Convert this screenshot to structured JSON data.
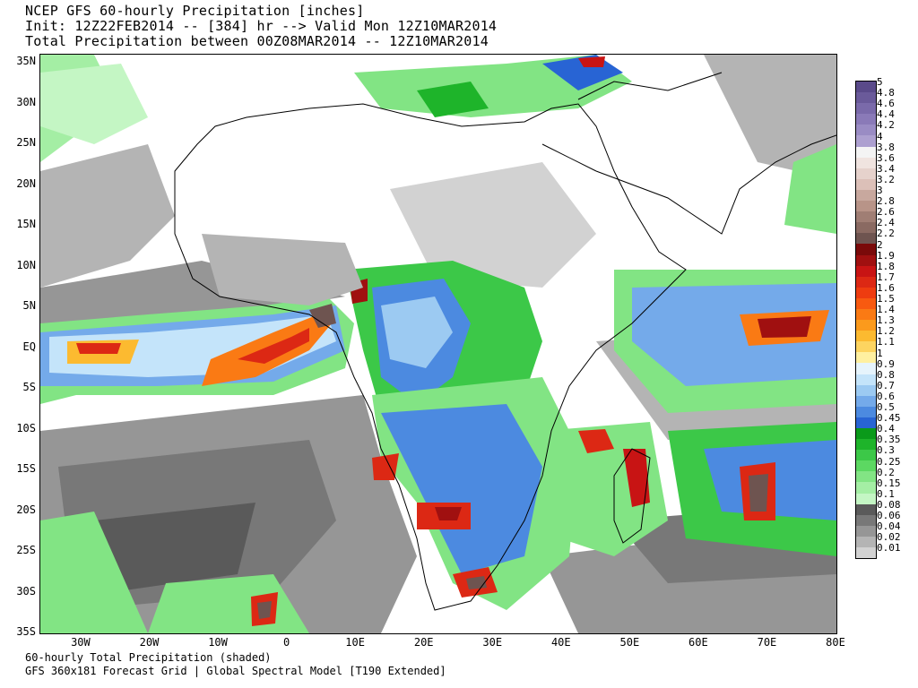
{
  "header": {
    "line1": "NCEP GFS 60-hourly Precipitation [inches]",
    "line2": "Init: 12Z22FEB2014 -- [384] hr --> Valid Mon 12Z10MAR2014",
    "line3": "Total Precipitation between 00Z08MAR2014 -- 12Z10MAR2014"
  },
  "footer": {
    "line1": "60-hourly Total Precipitation (shaded)",
    "line2": "GFS 360x181 Forecast Grid | Global Spectral Model [T190 Extended]"
  },
  "map": {
    "lon_range": [
      -36,
      80
    ],
    "lat_range": [
      -35,
      36
    ],
    "lat_ticks": [
      {
        "value": 35,
        "label": "35N"
      },
      {
        "value": 30,
        "label": "30N"
      },
      {
        "value": 25,
        "label": "25N"
      },
      {
        "value": 20,
        "label": "20N"
      },
      {
        "value": 15,
        "label": "15N"
      },
      {
        "value": 10,
        "label": "10N"
      },
      {
        "value": 5,
        "label": "5N"
      },
      {
        "value": 0,
        "label": "EQ"
      },
      {
        "value": -5,
        "label": "5S"
      },
      {
        "value": -10,
        "label": "10S"
      },
      {
        "value": -15,
        "label": "15S"
      },
      {
        "value": -20,
        "label": "20S"
      },
      {
        "value": -25,
        "label": "25S"
      },
      {
        "value": -30,
        "label": "30S"
      },
      {
        "value": -35,
        "label": "35S"
      }
    ],
    "lon_ticks": [
      {
        "value": -30,
        "label": "30W"
      },
      {
        "value": -20,
        "label": "20W"
      },
      {
        "value": -10,
        "label": "10W"
      },
      {
        "value": 0,
        "label": "0"
      },
      {
        "value": 10,
        "label": "10E"
      },
      {
        "value": 20,
        "label": "20E"
      },
      {
        "value": 30,
        "label": "30E"
      },
      {
        "value": 40,
        "label": "40E"
      },
      {
        "value": 50,
        "label": "50E"
      },
      {
        "value": 60,
        "label": "60E"
      },
      {
        "value": 70,
        "label": "70E"
      },
      {
        "value": 80,
        "label": "80E"
      }
    ]
  },
  "legend": {
    "title": "",
    "levels": [
      {
        "label": "5",
        "color": "#5a4a8a"
      },
      {
        "label": "4.8",
        "color": "#6a5a9a"
      },
      {
        "label": "4.6",
        "color": "#7a6aaa"
      },
      {
        "label": "4.4",
        "color": "#8a7ab8"
      },
      {
        "label": "4.2",
        "color": "#9a8cc4"
      },
      {
        "label": "4",
        "color": "#ada0d0"
      },
      {
        "label": "3.8",
        "color": "#f4f4f4"
      },
      {
        "label": "3.6",
        "color": "#f0e4e0"
      },
      {
        "label": "3.4",
        "color": "#e6d2cc"
      },
      {
        "label": "3.2",
        "color": "#dcc0b8"
      },
      {
        "label": "3",
        "color": "#c8a89e"
      },
      {
        "label": "2.8",
        "color": "#b89488"
      },
      {
        "label": "2.6",
        "color": "#a07e74"
      },
      {
        "label": "2.4",
        "color": "#8a6a62"
      },
      {
        "label": "2.2",
        "color": "#6e5450"
      },
      {
        "label": "2",
        "color": "#7a0a0a"
      },
      {
        "label": "1.9",
        "color": "#a01010"
      },
      {
        "label": "1.8",
        "color": "#c81414"
      },
      {
        "label": "1.7",
        "color": "#dc2814"
      },
      {
        "label": "1.6",
        "color": "#ee3c10"
      },
      {
        "label": "1.5",
        "color": "#f85a10"
      },
      {
        "label": "1.4",
        "color": "#fa7a14"
      },
      {
        "label": "1.3",
        "color": "#fb9a1c"
      },
      {
        "label": "1.2",
        "color": "#fcba30"
      },
      {
        "label": "1.1",
        "color": "#fdd460"
      },
      {
        "label": "1",
        "color": "#fff0a0"
      },
      {
        "label": "0.9",
        "color": "#e6f4fc"
      },
      {
        "label": "0.8",
        "color": "#c4e4fa"
      },
      {
        "label": "0.7",
        "color": "#9ccaf2"
      },
      {
        "label": "0.6",
        "color": "#74aaea"
      },
      {
        "label": "0.5",
        "color": "#4c8ae0"
      },
      {
        "label": "0.45",
        "color": "#2864d4"
      },
      {
        "label": "0.4",
        "color": "#0a9a1a"
      },
      {
        "label": "0.35",
        "color": "#1eb42a"
      },
      {
        "label": "0.3",
        "color": "#3cc848"
      },
      {
        "label": "0.25",
        "color": "#5cd862"
      },
      {
        "label": "0.2",
        "color": "#82e484"
      },
      {
        "label": "0.15",
        "color": "#a4eea4"
      },
      {
        "label": "0.1",
        "color": "#c4f6c4"
      },
      {
        "label": "0.08",
        "color": "#5a5a5a"
      },
      {
        "label": "0.06",
        "color": "#787878"
      },
      {
        "label": "0.04",
        "color": "#969696"
      },
      {
        "label": "0.02",
        "color": "#b4b4b4"
      },
      {
        "label": "0.01",
        "color": "#d2d2d2"
      }
    ]
  }
}
